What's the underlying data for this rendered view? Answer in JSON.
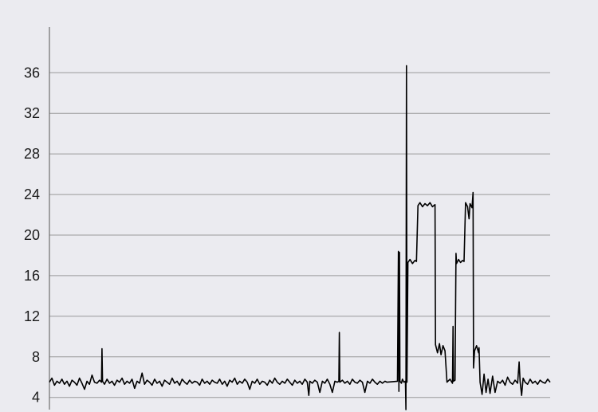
{
  "chart_data": {
    "type": "line",
    "title": "",
    "xlabel": "",
    "ylabel": "",
    "ylim": [
      2.8,
      40.5
    ],
    "xlim": [
      0,
      1000
    ],
    "yticks": [
      4,
      8,
      12,
      16,
      20,
      24,
      28,
      32,
      36
    ],
    "grid": true,
    "legend": "none",
    "colors": {
      "background": "#ebebf0",
      "grid": "#9a9a9a",
      "line": "#000000"
    },
    "series": [
      {
        "points": [
          [
            0,
            5.5
          ],
          [
            5,
            5.9
          ],
          [
            10,
            5.2
          ],
          [
            15,
            5.6
          ],
          [
            20,
            5.4
          ],
          [
            25,
            5.8
          ],
          [
            30,
            5.3
          ],
          [
            35,
            5.6
          ],
          [
            40,
            5.1
          ],
          [
            45,
            5.7
          ],
          [
            50,
            5.5
          ],
          [
            55,
            5.2
          ],
          [
            60,
            5.9
          ],
          [
            65,
            5.4
          ],
          [
            70,
            4.8
          ],
          [
            75,
            5.6
          ],
          [
            80,
            5.3
          ],
          [
            85,
            6.2
          ],
          [
            90,
            5.5
          ],
          [
            95,
            5.4
          ],
          [
            100,
            5.7
          ],
          [
            104,
            5.5
          ],
          [
            105,
            8.8
          ],
          [
            106,
            5.6
          ],
          [
            110,
            5.3
          ],
          [
            115,
            5.8
          ],
          [
            120,
            5.4
          ],
          [
            125,
            5.6
          ],
          [
            130,
            5.2
          ],
          [
            135,
            5.7
          ],
          [
            140,
            5.5
          ],
          [
            145,
            5.9
          ],
          [
            150,
            5.3
          ],
          [
            155,
            5.6
          ],
          [
            160,
            5.4
          ],
          [
            165,
            5.8
          ],
          [
            170,
            4.9
          ],
          [
            175,
            5.6
          ],
          [
            180,
            5.4
          ],
          [
            185,
            6.4
          ],
          [
            190,
            5.3
          ],
          [
            195,
            5.7
          ],
          [
            200,
            5.5
          ],
          [
            205,
            5.2
          ],
          [
            210,
            5.8
          ],
          [
            215,
            5.4
          ],
          [
            220,
            5.6
          ],
          [
            225,
            5.1
          ],
          [
            230,
            5.7
          ],
          [
            235,
            5.5
          ],
          [
            240,
            5.3
          ],
          [
            245,
            5.9
          ],
          [
            250,
            5.4
          ],
          [
            255,
            5.6
          ],
          [
            260,
            5.2
          ],
          [
            265,
            5.8
          ],
          [
            270,
            5.5
          ],
          [
            275,
            5.3
          ],
          [
            280,
            5.7
          ],
          [
            285,
            5.4
          ],
          [
            290,
            5.6
          ],
          [
            295,
            5.5
          ],
          [
            300,
            5.2
          ],
          [
            305,
            5.8
          ],
          [
            310,
            5.4
          ],
          [
            315,
            5.6
          ],
          [
            320,
            5.3
          ],
          [
            325,
            5.7
          ],
          [
            330,
            5.5
          ],
          [
            335,
            5.4
          ],
          [
            340,
            5.8
          ],
          [
            345,
            5.3
          ],
          [
            350,
            5.6
          ],
          [
            355,
            5.1
          ],
          [
            360,
            5.7
          ],
          [
            365,
            5.5
          ],
          [
            370,
            5.9
          ],
          [
            375,
            5.3
          ],
          [
            380,
            5.6
          ],
          [
            385,
            5.4
          ],
          [
            390,
            5.8
          ],
          [
            395,
            5.5
          ],
          [
            400,
            4.8
          ],
          [
            405,
            5.6
          ],
          [
            410,
            5.4
          ],
          [
            415,
            5.8
          ],
          [
            420,
            5.3
          ],
          [
            425,
            5.6
          ],
          [
            430,
            5.5
          ],
          [
            435,
            5.2
          ],
          [
            440,
            5.7
          ],
          [
            445,
            5.4
          ],
          [
            450,
            5.9
          ],
          [
            455,
            5.5
          ],
          [
            460,
            5.3
          ],
          [
            465,
            5.6
          ],
          [
            470,
            5.4
          ],
          [
            475,
            5.8
          ],
          [
            480,
            5.5
          ],
          [
            485,
            5.2
          ],
          [
            490,
            5.7
          ],
          [
            495,
            5.4
          ],
          [
            500,
            5.6
          ],
          [
            505,
            5.3
          ],
          [
            510,
            5.8
          ],
          [
            515,
            5.5
          ],
          [
            518,
            4.2
          ],
          [
            520,
            5.6
          ],
          [
            525,
            5.4
          ],
          [
            530,
            5.7
          ],
          [
            535,
            5.5
          ],
          [
            540,
            4.5
          ],
          [
            545,
            5.6
          ],
          [
            550,
            5.4
          ],
          [
            555,
            5.8
          ],
          [
            560,
            5.3
          ],
          [
            565,
            4.5
          ],
          [
            570,
            5.6
          ],
          [
            575,
            5.5
          ],
          [
            578,
            5.6
          ],
          [
            579,
            10.4
          ],
          [
            580,
            5.5
          ],
          [
            585,
            5.7
          ],
          [
            590,
            5.4
          ],
          [
            595,
            5.6
          ],
          [
            600,
            5.3
          ],
          [
            605,
            5.8
          ],
          [
            610,
            5.5
          ],
          [
            615,
            5.4
          ],
          [
            620,
            5.7
          ],
          [
            625,
            5.5
          ],
          [
            630,
            4.5
          ],
          [
            635,
            5.6
          ],
          [
            640,
            5.4
          ],
          [
            645,
            5.8
          ],
          [
            650,
            5.5
          ],
          [
            655,
            5.3
          ],
          [
            660,
            5.6
          ],
          [
            665,
            5.4
          ],
          [
            670,
            5.6
          ],
          [
            674,
            5.5
          ],
          [
            695,
            5.6
          ],
          [
            697,
            18.4
          ],
          [
            698,
            4.6
          ],
          [
            699,
            18.3
          ],
          [
            700,
            5.6
          ],
          [
            703,
            5.4
          ],
          [
            705,
            5.8
          ],
          [
            708,
            5.5
          ],
          [
            711,
            5.6
          ],
          [
            712,
            2.8
          ],
          [
            713,
            36.7
          ],
          [
            714,
            5.5
          ],
          [
            716,
            17.3
          ],
          [
            720,
            17.6
          ],
          [
            725,
            17.2
          ],
          [
            730,
            17.5
          ],
          [
            733,
            17.4
          ],
          [
            736,
            22.9
          ],
          [
            740,
            23.2
          ],
          [
            745,
            22.8
          ],
          [
            750,
            23.1
          ],
          [
            755,
            22.9
          ],
          [
            760,
            23.2
          ],
          [
            765,
            22.8
          ],
          [
            770,
            23.0
          ],
          [
            771,
            9.2
          ],
          [
            775,
            8.4
          ],
          [
            779,
            9.3
          ],
          [
            782,
            8.2
          ],
          [
            786,
            9.1
          ],
          [
            790,
            8.6
          ],
          [
            794,
            5.5
          ],
          [
            800,
            5.8
          ],
          [
            805,
            5.4
          ],
          [
            806,
            11.0
          ],
          [
            807,
            5.6
          ],
          [
            810,
            5.7
          ],
          [
            812,
            18.2
          ],
          [
            813,
            17.2
          ],
          [
            817,
            17.6
          ],
          [
            821,
            17.3
          ],
          [
            825,
            17.5
          ],
          [
            828,
            17.4
          ],
          [
            831,
            23.2
          ],
          [
            835,
            22.8
          ],
          [
            838,
            21.6
          ],
          [
            840,
            23.1
          ],
          [
            844,
            22.7
          ],
          [
            846,
            24.2
          ],
          [
            847,
            6.9
          ],
          [
            849,
            8.6
          ],
          [
            853,
            9.1
          ],
          [
            857,
            8.4
          ],
          [
            858,
            8.9
          ],
          [
            860,
            5.5
          ],
          [
            864,
            4.3
          ],
          [
            868,
            6.3
          ],
          [
            872,
            4.5
          ],
          [
            876,
            5.8
          ],
          [
            880,
            4.4
          ],
          [
            885,
            6.1
          ],
          [
            890,
            4.5
          ],
          [
            895,
            5.6
          ],
          [
            900,
            5.4
          ],
          [
            905,
            5.7
          ],
          [
            910,
            5.2
          ],
          [
            915,
            6.0
          ],
          [
            920,
            5.5
          ],
          [
            925,
            5.3
          ],
          [
            930,
            5.7
          ],
          [
            935,
            5.4
          ],
          [
            938,
            7.5
          ],
          [
            940,
            5.6
          ],
          [
            943,
            4.2
          ],
          [
            946,
            5.9
          ],
          [
            950,
            5.5
          ],
          [
            955,
            5.3
          ],
          [
            960,
            5.8
          ],
          [
            965,
            5.4
          ],
          [
            970,
            5.6
          ],
          [
            975,
            5.3
          ],
          [
            980,
            5.7
          ],
          [
            985,
            5.5
          ],
          [
            990,
            5.4
          ],
          [
            995,
            5.8
          ],
          [
            1000,
            5.5
          ]
        ]
      }
    ]
  }
}
